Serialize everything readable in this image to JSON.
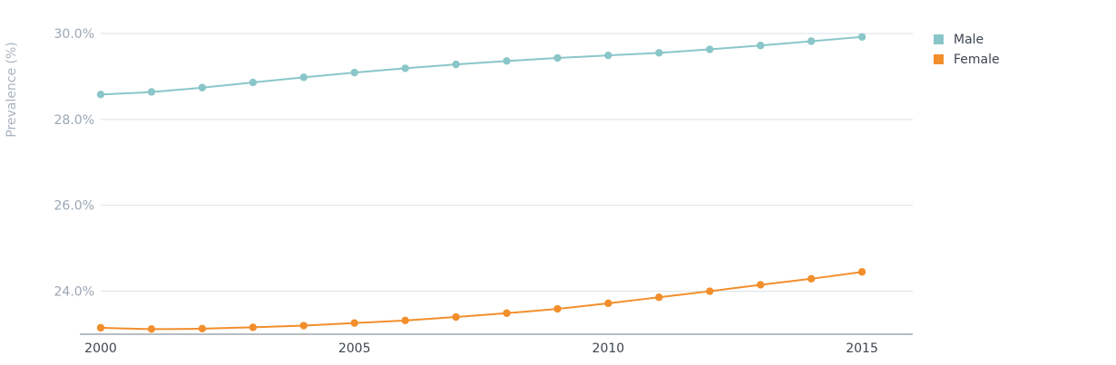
{
  "chart_data": {
    "type": "line",
    "title": "",
    "xlabel": "",
    "ylabel": "Prevalence (%)",
    "x": [
      2000,
      2001,
      2002,
      2003,
      2004,
      2005,
      2006,
      2007,
      2008,
      2009,
      2010,
      2011,
      2012,
      2013,
      2014,
      2015
    ],
    "x_ticks": [
      2000,
      2005,
      2010,
      2015
    ],
    "x_tick_labels": [
      "2000",
      "2005",
      "2010",
      "2015"
    ],
    "xlim": [
      2000,
      2016
    ],
    "y_ticks": [
      24,
      26,
      28,
      30
    ],
    "y_tick_labels": [
      "24.0%",
      "26.0%",
      "28.0%",
      "30.0%"
    ],
    "ylim": [
      23.0,
      30.4
    ],
    "grid": "horizontal",
    "legend_position": "top-right",
    "series": [
      {
        "name": "Male",
        "color": "#8ac6c9",
        "values": [
          28.58,
          28.64,
          28.74,
          28.86,
          28.98,
          29.09,
          29.19,
          29.28,
          29.36,
          29.43,
          29.49,
          29.55,
          29.63,
          29.72,
          29.82,
          29.92
        ]
      },
      {
        "name": "Female",
        "color": "#f28e2b",
        "values": [
          23.15,
          23.12,
          23.13,
          23.16,
          23.2,
          23.26,
          23.32,
          23.4,
          23.49,
          23.59,
          23.72,
          23.86,
          24.0,
          24.15,
          24.29,
          24.45
        ]
      }
    ]
  }
}
